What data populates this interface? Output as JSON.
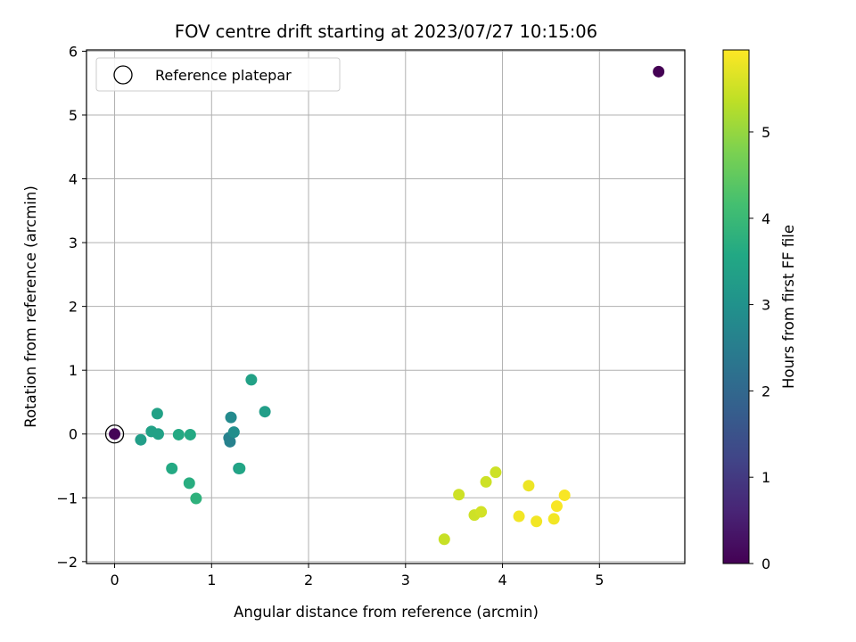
{
  "chart_data": {
    "type": "scatter",
    "title": "FOV centre drift starting at 2023/07/27 10:15:06",
    "xlabel": "Angular distance from reference (arcmin)",
    "ylabel": "Rotation from reference (arcmin)",
    "xlim": [
      -0.29,
      5.88
    ],
    "ylim": [
      -2.03,
      6.02
    ],
    "xticks": [
      "0",
      "1",
      "2",
      "3",
      "4",
      "5"
    ],
    "yticks": [
      "−2",
      "−1",
      "0",
      "1",
      "2",
      "3",
      "4",
      "5",
      "6"
    ],
    "grid": true,
    "legend": {
      "position": "top-left",
      "entries": [
        "Reference platepar"
      ]
    },
    "reference_point": {
      "x": 0,
      "y": 0,
      "hours": 0.05
    },
    "colorbar": {
      "label": "Hours from first FF file",
      "range": [
        0,
        5.95
      ],
      "ticks": [
        "0",
        "1",
        "2",
        "3",
        "4",
        "5"
      ],
      "colormap": "viridis"
    },
    "points": [
      {
        "x": 5.61,
        "y": 5.68,
        "hours": 0.0
      },
      {
        "x": 0.27,
        "y": -0.09,
        "hours": 3.3
      },
      {
        "x": 0.38,
        "y": 0.04,
        "hours": 3.4
      },
      {
        "x": 0.44,
        "y": 0.32,
        "hours": 3.4
      },
      {
        "x": 0.45,
        "y": 0.0,
        "hours": 3.4
      },
      {
        "x": 0.59,
        "y": -0.54,
        "hours": 3.6
      },
      {
        "x": 0.66,
        "y": -0.01,
        "hours": 3.6
      },
      {
        "x": 0.77,
        "y": -0.77,
        "hours": 3.7
      },
      {
        "x": 0.78,
        "y": -0.01,
        "hours": 3.6
      },
      {
        "x": 0.84,
        "y": -1.01,
        "hours": 3.8
      },
      {
        "x": 1.18,
        "y": -0.06,
        "hours": 2.6
      },
      {
        "x": 1.19,
        "y": -0.12,
        "hours": 2.6
      },
      {
        "x": 1.2,
        "y": 0.26,
        "hours": 2.8
      },
      {
        "x": 1.23,
        "y": 0.03,
        "hours": 2.9
      },
      {
        "x": 1.28,
        "y": -0.54,
        "hours": 3.1
      },
      {
        "x": 1.29,
        "y": -0.54,
        "hours": 3.5
      },
      {
        "x": 1.41,
        "y": 0.85,
        "hours": 3.4
      },
      {
        "x": 1.55,
        "y": 0.35,
        "hours": 3.3
      },
      {
        "x": 3.4,
        "y": -1.65,
        "hours": 5.45
      },
      {
        "x": 3.55,
        "y": -0.95,
        "hours": 5.5
      },
      {
        "x": 3.71,
        "y": -1.27,
        "hours": 5.5
      },
      {
        "x": 3.78,
        "y": -1.22,
        "hours": 5.55
      },
      {
        "x": 3.83,
        "y": -0.75,
        "hours": 5.5
      },
      {
        "x": 3.93,
        "y": -0.6,
        "hours": 5.5
      },
      {
        "x": 4.17,
        "y": -1.29,
        "hours": 5.85
      },
      {
        "x": 4.27,
        "y": -0.81,
        "hours": 5.8
      },
      {
        "x": 4.35,
        "y": -1.37,
        "hours": 5.85
      },
      {
        "x": 4.53,
        "y": -1.33,
        "hours": 5.85
      },
      {
        "x": 4.56,
        "y": -1.13,
        "hours": 5.9
      },
      {
        "x": 4.64,
        "y": -0.96,
        "hours": 5.9
      }
    ]
  }
}
